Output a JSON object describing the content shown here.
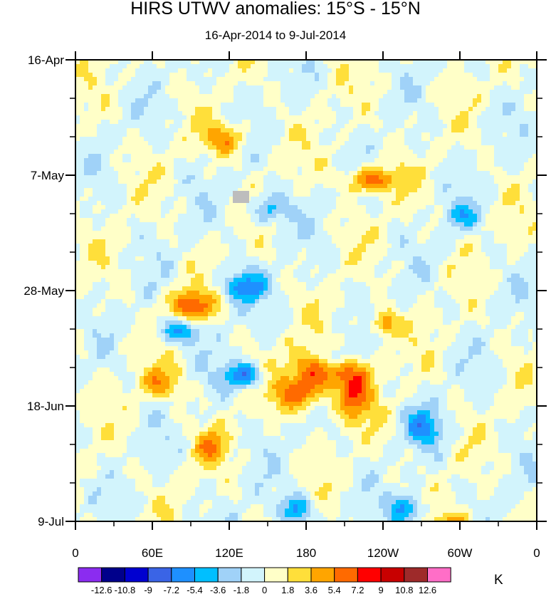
{
  "chart_data": {
    "type": "heatmap",
    "title": "HIRS UTWV anomalies: 15°S - 15°N",
    "subtitle": "16-Apr-2014 to 9-Jul-2014",
    "x_ticks": [
      "0",
      "60E",
      "120E",
      "180",
      "120W",
      "60W",
      "0"
    ],
    "x_tick_values": [
      0,
      60,
      120,
      180,
      240,
      300,
      360
    ],
    "xlim": [
      0,
      360
    ],
    "y_ticks": [
      "16-Apr",
      "7-May",
      "28-May",
      "18-Jun",
      "9-Jul"
    ],
    "y_tick_days": [
      0,
      21,
      42,
      63,
      84
    ],
    "ylim_days": [
      0,
      84
    ],
    "colorbar": {
      "levels": [
        "-12.6",
        "-10.8",
        "-9",
        "-7.2",
        "-5.4",
        "-3.6",
        "-1.8",
        "0",
        "1.8",
        "3.6",
        "5.4",
        "7.2",
        "9",
        "10.8",
        "12.6"
      ],
      "colors": [
        "#8b2cf0",
        "#00008b",
        "#0000d0",
        "#3a64e6",
        "#1e90ff",
        "#00bfff",
        "#a0d2f8",
        "#d2f4fc",
        "#ffffc8",
        "#ffdf3a",
        "#ffa500",
        "#ff6a00",
        "#ff0000",
        "#c80000",
        "#9e2a2a",
        "#ff6ec7"
      ],
      "unit": "K"
    }
  }
}
